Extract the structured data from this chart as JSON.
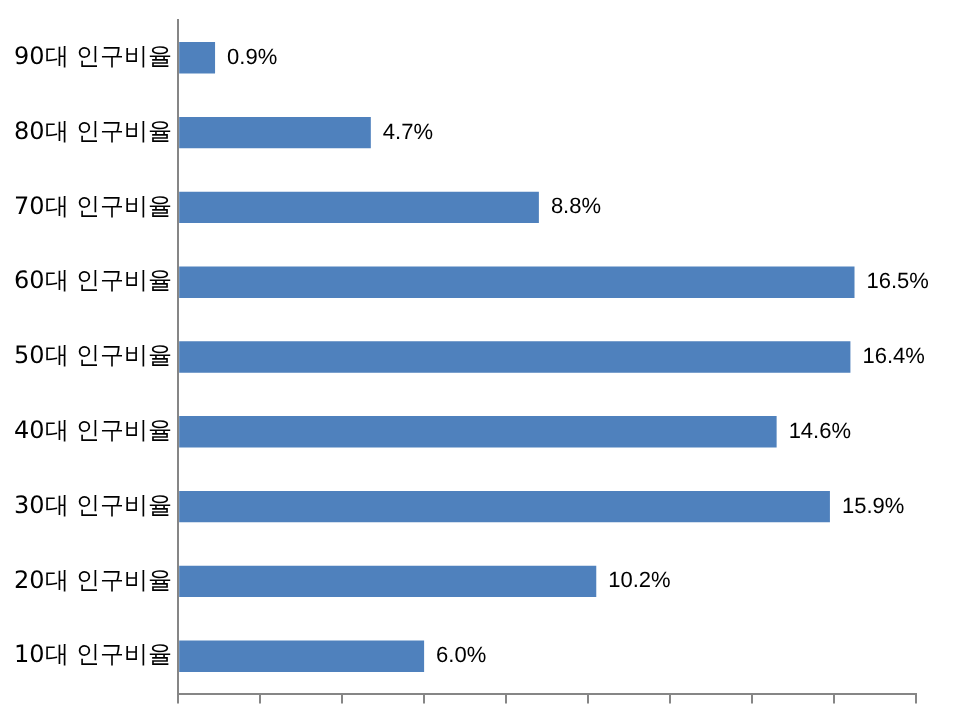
{
  "chart_data": {
    "type": "bar",
    "orientation": "horizontal",
    "categories": [
      "90대 인구비율",
      "80대 인구비율",
      "70대 인구비율",
      "60대 인구비율",
      "50대 인구비율",
      "40대 인구비율",
      "30대 인구비율",
      "20대 인구비율",
      "10대 인구비율"
    ],
    "values": [
      0.9,
      4.7,
      8.8,
      16.5,
      16.4,
      14.6,
      15.9,
      10.2,
      6.0
    ],
    "value_labels": [
      "0.9%",
      "4.7%",
      "8.8%",
      "16.5%",
      "16.4%",
      "14.6%",
      "15.9%",
      "10.2%",
      "6.0%"
    ],
    "color": "#4f81bd",
    "xlim": [
      0,
      18
    ],
    "xticks": [
      {
        "value": 0,
        "label": null
      },
      {
        "value": 2,
        "label": null
      },
      {
        "value": 4,
        "label": null
      },
      {
        "value": 6,
        "label": null
      },
      {
        "value": 8,
        "label": null
      },
      {
        "value": 10,
        "label": null
      },
      {
        "value": 12,
        "label": null
      },
      {
        "value": 14,
        "label": null
      },
      {
        "value": 16,
        "label": null
      },
      {
        "value": 18,
        "label": null
      }
    ],
    "tick_labels": "y",
    "grid": false,
    "legend": false
  }
}
